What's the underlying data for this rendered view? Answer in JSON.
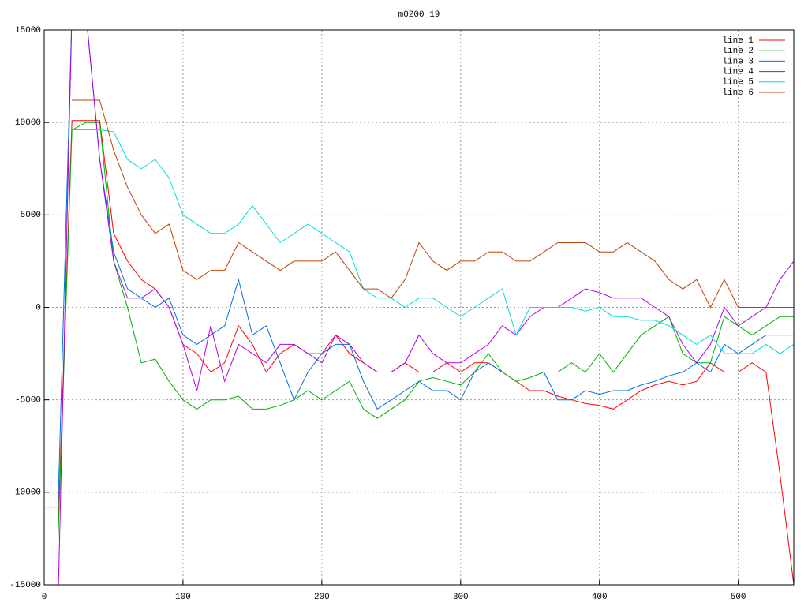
{
  "chart_data": {
    "type": "line",
    "title": "m0200_19",
    "x": [
      0,
      10,
      20,
      30,
      40,
      50,
      60,
      70,
      80,
      90,
      100,
      110,
      120,
      130,
      140,
      150,
      160,
      170,
      180,
      190,
      200,
      210,
      220,
      230,
      240,
      250,
      260,
      270,
      280,
      290,
      300,
      310,
      320,
      330,
      340,
      350,
      360,
      370,
      380,
      390,
      400,
      410,
      420,
      430,
      440,
      450,
      460,
      470,
      480,
      490,
      500,
      510,
      520,
      530,
      540
    ],
    "xlim": [
      0,
      540
    ],
    "xticks": [
      0,
      100,
      200,
      300,
      400,
      500
    ],
    "ylim": [
      -15000,
      15000
    ],
    "yticks": [
      -15000,
      -10000,
      -5000,
      0,
      5000,
      10000,
      15000
    ],
    "grid": true,
    "legend": "top-right",
    "series": [
      {
        "name": "line 1",
        "color": "#ff0000",
        "values": [
          null,
          -12000,
          10100,
          10100,
          10100,
          4000,
          2500,
          1500,
          1000,
          0,
          -2000,
          -2500,
          -3500,
          -3000,
          -1000,
          -2000,
          -3500,
          -2500,
          -2000,
          -2500,
          -2500,
          -1500,
          -2500,
          -3000,
          -3500,
          -3500,
          -3000,
          -3500,
          -3500,
          -3000,
          -3500,
          -3000,
          -3000,
          -3500,
          -4000,
          -4500,
          -4500,
          -4800,
          -5000,
          -5200,
          -5300,
          -5500,
          -5000,
          -4500,
          -4200,
          -4000,
          -4200,
          -4000,
          -3000,
          -3500,
          -3500,
          -3000,
          -3500,
          -9000,
          -15000
        ]
      },
      {
        "name": "line 2",
        "color": "#00b000",
        "values": [
          null,
          -12500,
          9600,
          10000,
          10000,
          2500,
          0,
          -3000,
          -2800,
          -4000,
          -5000,
          -5500,
          -5000,
          -5000,
          -4800,
          -5500,
          -5500,
          -5300,
          -5000,
          -4500,
          -5000,
          -4500,
          -4000,
          -5500,
          -6000,
          -5500,
          -5000,
          -4000,
          -3800,
          -4000,
          -4200,
          -3500,
          -2500,
          -3500,
          -4000,
          -3800,
          -3500,
          -3500,
          -3000,
          -3500,
          -2500,
          -3500,
          -2500,
          -1500,
          -1000,
          -500,
          -2500,
          -3000,
          -3000,
          -500,
          -1000,
          -1500,
          -1000,
          -500,
          -500
        ]
      },
      {
        "name": "line 3",
        "color": "#0070e0",
        "values": [
          -10800,
          -10800,
          16000,
          16000,
          8000,
          3000,
          1000,
          500,
          0,
          500,
          -1500,
          -2000,
          -1500,
          -1000,
          1500,
          -1500,
          -1000,
          -3000,
          -5000,
          -3500,
          -2500,
          -2000,
          -2000,
          -4000,
          -5500,
          -5000,
          -4500,
          -4000,
          -4500,
          -4500,
          -5000,
          -3500,
          -3000,
          -3500,
          -3500,
          -3500,
          -3500,
          -5000,
          -5000,
          -4500,
          -4700,
          -4500,
          -4500,
          -4200,
          -4000,
          -3700,
          -3500,
          -3000,
          -3500,
          -2000,
          -2500,
          -2000,
          -1500,
          -1500,
          -1500
        ]
      },
      {
        "name": "line 4",
        "color": "#b000e0",
        "values": [
          null,
          -16000,
          16000,
          16000,
          8000,
          2500,
          500,
          500,
          1000,
          0,
          -2000,
          -4500,
          -1000,
          -4000,
          -2000,
          -2500,
          -3000,
          -2000,
          -2000,
          -2500,
          -3000,
          -1500,
          -2000,
          -3000,
          -3500,
          -3500,
          -3000,
          -1500,
          -2500,
          -3000,
          -3000,
          -2500,
          -2000,
          -1000,
          -1500,
          -500,
          0,
          0,
          500,
          1000,
          800,
          500,
          500,
          500,
          0,
          -500,
          -2000,
          -3000,
          -2000,
          0,
          -1000,
          -500,
          0,
          1500,
          2500
        ]
      },
      {
        "name": "line 5",
        "color": "#00dddd",
        "values": [
          null,
          null,
          9600,
          9600,
          9600,
          9500,
          8000,
          7500,
          8000,
          7000,
          5000,
          4500,
          4000,
          4000,
          4500,
          5500,
          4500,
          3500,
          4000,
          4500,
          4000,
          3500,
          3000,
          1000,
          500,
          500,
          0,
          500,
          500,
          0,
          -500,
          0,
          500,
          1000,
          -1500,
          0,
          0,
          0,
          0,
          -200,
          0,
          -500,
          -500,
          -700,
          -700,
          -1000,
          -1500,
          -2000,
          -1500,
          -2500,
          -2500,
          -2500,
          -2000,
          -2500,
          -2000
        ]
      },
      {
        "name": "line 6",
        "color": "#c04000",
        "values": [
          null,
          null,
          11200,
          11200,
          11200,
          8500,
          6500,
          5000,
          4000,
          4500,
          2000,
          1500,
          2000,
          2000,
          3500,
          3000,
          2500,
          2000,
          2500,
          2500,
          2500,
          3000,
          2000,
          1000,
          1000,
          500,
          1500,
          3500,
          2500,
          2000,
          2500,
          2500,
          3000,
          3000,
          2500,
          2500,
          3000,
          3500,
          3500,
          3500,
          3000,
          3000,
          3500,
          3000,
          2500,
          1500,
          1000,
          1500,
          0,
          1500,
          0,
          0,
          0,
          0,
          0
        ]
      }
    ]
  }
}
